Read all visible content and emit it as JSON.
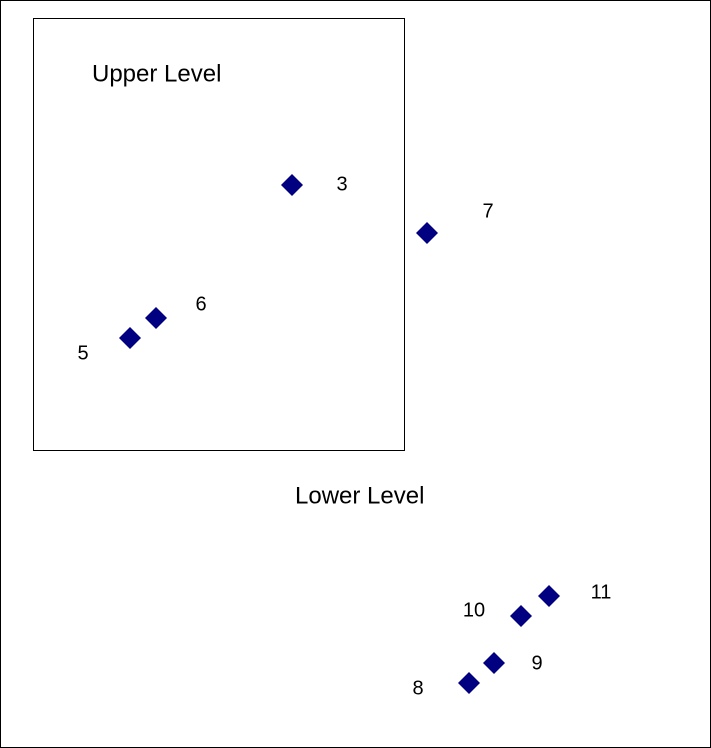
{
  "regions": [
    {
      "label": "Upper Level"
    },
    {
      "label": "Lower Level"
    }
  ],
  "points": [
    {
      "label": "3"
    },
    {
      "label": "7"
    },
    {
      "label": "6"
    },
    {
      "label": "5"
    },
    {
      "label": "11"
    },
    {
      "label": "10"
    },
    {
      "label": "9"
    },
    {
      "label": "8"
    }
  ]
}
